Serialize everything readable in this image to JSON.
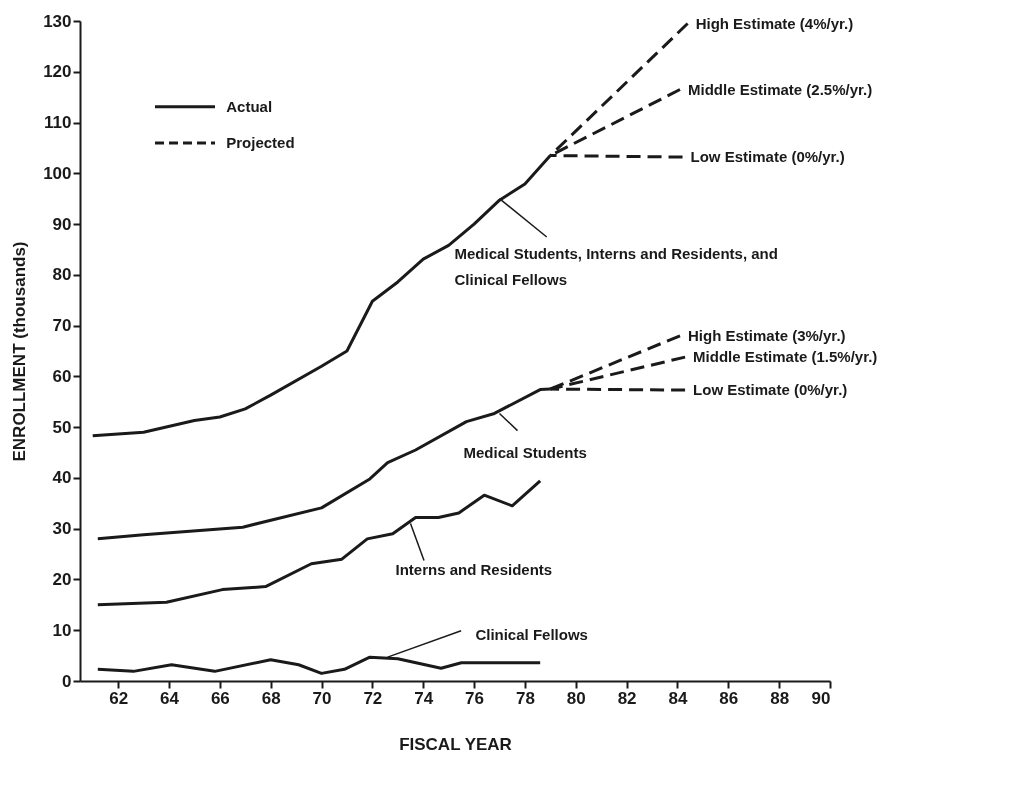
{
  "chart_data": {
    "type": "line",
    "xlabel": "FISCAL YEAR",
    "ylabel": "ENROLLMENT (thousands)",
    "xlim": [
      60.5,
      90
    ],
    "xticks": [
      62,
      64,
      66,
      68,
      70,
      72,
      74,
      76,
      78,
      80,
      82,
      84,
      86,
      88,
      90
    ],
    "ylim": [
      0,
      130
    ],
    "yticks": [
      0,
      10,
      20,
      30,
      40,
      50,
      60,
      70,
      80,
      90,
      100,
      110,
      120,
      130
    ],
    "grid": false,
    "marker": "none",
    "series": [
      {
        "color": "#1a1a1a",
        "line_style": "solid",
        "x": [
          61,
          63,
          65,
          66,
          67,
          68,
          70,
          71,
          72,
          73,
          74,
          75,
          76,
          77,
          78,
          79
        ],
        "values": [
          48.3,
          49,
          51.3,
          52,
          53.6,
          56.3,
          62,
          65,
          74.8,
          78.6,
          83.1,
          85.8,
          90,
          94.7,
          97.9,
          103.5
        ]
      },
      {
        "color": "#1a1a1a",
        "line_style": "solid",
        "x": [
          61.2,
          63,
          66.9,
          70,
          71.9,
          72.6,
          73.7,
          75.7,
          76.8,
          78.6,
          79
        ],
        "values": [
          28,
          28.8,
          30.3,
          34.1,
          39.8,
          43,
          45.5,
          51.1,
          52.7,
          57.4,
          57.5
        ]
      },
      {
        "color": "#1a1a1a",
        "line_style": "solid",
        "x": [
          61.2,
          63.9,
          66.1,
          67.8,
          69.6,
          70.8,
          71.8,
          72.8,
          73.7,
          74.6,
          75.4,
          76.4,
          77.5,
          78.6
        ],
        "values": [
          15,
          15.5,
          18,
          18.6,
          23.1,
          24,
          28,
          29,
          32.2,
          32.2,
          33.1,
          36.6,
          34.5,
          39.4
        ]
      },
      {
        "color": "#1a1a1a",
        "line_style": "solid",
        "x": [
          61.2,
          62.6,
          64.1,
          65.8,
          68,
          69.1,
          70,
          70.9,
          71.9,
          73,
          74.7,
          75.5,
          78.6
        ],
        "values": [
          2.3,
          1.9,
          3.2,
          1.9,
          4.2,
          3.2,
          1.5,
          2.3,
          4.7,
          4.4,
          2.5,
          3.6,
          3.6
        ]
      },
      {
        "color": "#1a1a1a",
        "line_style": "dashed",
        "x": [
          79,
          84.4
        ],
        "values": [
          103.5,
          129.5
        ]
      },
      {
        "color": "#1a1a1a",
        "line_style": "dashed",
        "x": [
          79,
          84.1
        ],
        "values": [
          103.5,
          116.5
        ]
      },
      {
        "color": "#1a1a1a",
        "line_style": "dashed",
        "x": [
          79,
          84.2
        ],
        "values": [
          103.5,
          103.2
        ]
      },
      {
        "color": "#1a1a1a",
        "line_style": "dashed",
        "x": [
          79,
          84.1
        ],
        "values": [
          57.5,
          68
        ]
      },
      {
        "color": "#1a1a1a",
        "line_style": "dashed",
        "x": [
          79,
          84.3
        ],
        "values": [
          57.5,
          63.8
        ]
      },
      {
        "color": "#1a1a1a",
        "line_style": "dashed",
        "x": [
          79,
          84.3
        ],
        "values": [
          57.5,
          57.3
        ]
      }
    ],
    "annotations": [
      "Actual",
      "Projected",
      {
        "text": "Medical Students, Interns and Residents, and Clinical Fellows",
        "x": 77,
        "y": 95
      },
      {
        "text": "Medical Students",
        "x": 77,
        "y": 52.7
      },
      {
        "text": "Interns and Residents",
        "x": 73.5,
        "y": 31
      },
      {
        "text": "Clinical Fellows",
        "x": 72.6,
        "y": 4.7
      },
      {
        "text": "High Estimate (4%/yr.)",
        "x": 84.4,
        "y": 129.5
      },
      {
        "text": "Middle Estimate (2.5%/yr.)",
        "x": 84.1,
        "y": 116.5
      },
      {
        "text": "Low Estimate (0%/yr.)",
        "x": 84.2,
        "y": 103.2
      },
      {
        "text": "High Estimate (3%/yr.)",
        "x": 84.1,
        "y": 68
      },
      {
        "text": "Middle Estimate (1.5%/yr.)",
        "x": 84.3,
        "y": 63.8
      },
      {
        "text": "Low Estimate (0%/yr.)",
        "x": 84.3,
        "y": 57.3
      }
    ]
  }
}
